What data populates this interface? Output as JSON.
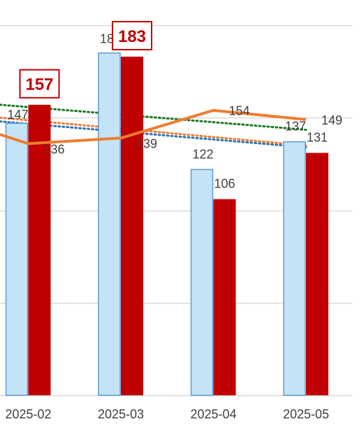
{
  "chart_data": {
    "type": "bar",
    "title": "",
    "xlabel": "",
    "ylabel": "",
    "categories": [
      "2025-02",
      "2025-03",
      "2025-04",
      "2025-05"
    ],
    "ylim": [
      0,
      200
    ],
    "grid": true,
    "y_ticks": [
      0,
      50,
      100,
      150,
      200
    ],
    "series": [
      {
        "type": "bar",
        "values": [
          147,
          185,
          122,
          137
        ],
        "labels": [
          "147",
          "185",
          "122",
          "137"
        ],
        "color": "#c5e3f6",
        "border_color": "#5b9bd5"
      },
      {
        "type": "bar",
        "values": [
          157,
          183,
          106,
          131
        ],
        "labels": [
          "157",
          "183",
          "106",
          "131"
        ],
        "color": "#c00000"
      },
      {
        "type": "line",
        "values": [
          136,
          139,
          154,
          149
        ],
        "labels": [
          "136",
          "139",
          "154",
          "149"
        ],
        "color": "#ed7d31"
      }
    ],
    "trendlines": [
      {
        "style": "dotted",
        "color": "#1e7a1e",
        "values": [
          157,
          143.5
        ]
      },
      {
        "style": "dotted",
        "color": "#ed7d31",
        "values": [
          150,
          135
        ]
      },
      {
        "style": "dotted",
        "color": "#2e75b6",
        "values": [
          148,
          134
        ]
      }
    ],
    "callouts": [
      {
        "category_index": 0,
        "text": "157",
        "color": "#c00000"
      },
      {
        "category_index": 1,
        "text": "183",
        "color": "#c00000"
      }
    ],
    "colors": {
      "gridline": "#d9d9d9",
      "axis_text": "#404040"
    }
  }
}
